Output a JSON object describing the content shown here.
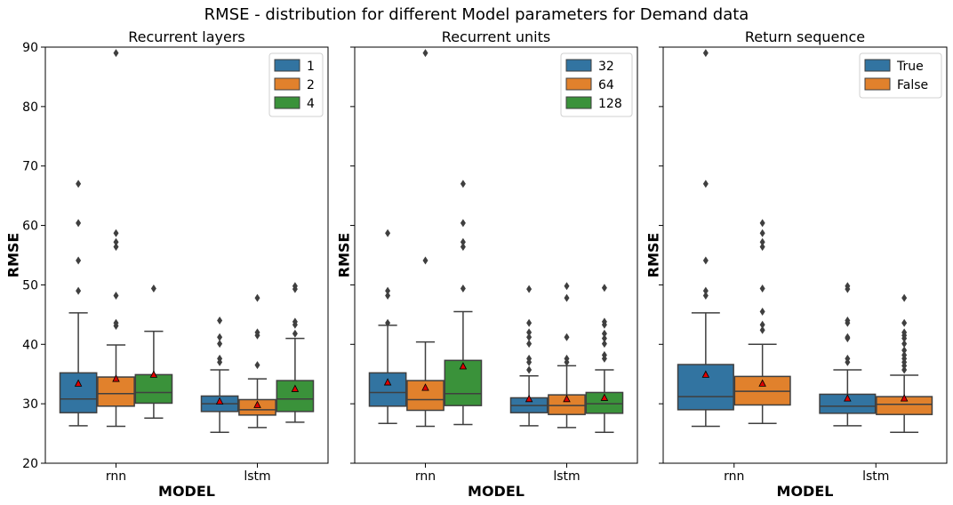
{
  "figure_title": "RMSE - distribution for different Model parameters for Demand data",
  "colors": {
    "blue": "#3274a1",
    "orange": "#e1812c",
    "green": "#3a923a",
    "mean_marker": "#e00000",
    "box_edge": "#3f3f3f"
  },
  "chart_data": [
    {
      "type": "box",
      "title": "Recurrent layers",
      "xlabel": "MODEL",
      "ylabel": "RMSE",
      "ylim": [
        20,
        90
      ],
      "yticks": [
        20,
        30,
        40,
        50,
        60,
        70,
        80,
        90
      ],
      "categories": [
        "rnn",
        "lstm"
      ],
      "legend_position": "top-right",
      "series": [
        {
          "name": "1",
          "color": "#3274a1",
          "boxes": [
            {
              "whisker_low": 26.3,
              "q1": 28.5,
              "median": 30.8,
              "q3": 35.2,
              "whisker_high": 45.3,
              "mean": 33.4,
              "outliers": [
                49.0,
                54.1,
                60.4,
                67.0
              ]
            },
            {
              "whisker_low": 25.2,
              "q1": 28.7,
              "median": 30.0,
              "q3": 31.3,
              "whisker_high": 35.7,
              "mean": 30.4,
              "outliers": [
                37.0,
                37.6,
                40.1,
                41.2,
                44.0
              ]
            }
          ]
        },
        {
          "name": "2",
          "color": "#e1812c",
          "boxes": [
            {
              "whisker_low": 26.2,
              "q1": 29.6,
              "median": 31.7,
              "q3": 34.5,
              "whisker_high": 39.9,
              "mean": 34.2,
              "outliers": [
                43.1,
                43.6,
                48.2,
                56.4,
                57.2,
                58.7,
                89.0
              ]
            },
            {
              "whisker_low": 26.0,
              "q1": 28.1,
              "median": 29.0,
              "q3": 30.7,
              "whisker_high": 34.2,
              "mean": 29.8,
              "outliers": [
                36.5,
                41.5,
                42.0,
                47.8
              ]
            }
          ]
        },
        {
          "name": "4",
          "color": "#3a923a",
          "boxes": [
            {
              "whisker_low": 27.6,
              "q1": 30.1,
              "median": 31.9,
              "q3": 34.9,
              "whisker_high": 42.2,
              "mean": 34.9,
              "outliers": [
                49.4
              ]
            },
            {
              "whisker_low": 26.9,
              "q1": 28.7,
              "median": 30.8,
              "q3": 33.9,
              "whisker_high": 41.0,
              "mean": 32.5,
              "outliers": [
                41.8,
                43.3,
                43.8,
                49.3,
                49.8
              ]
            }
          ]
        }
      ]
    },
    {
      "type": "box",
      "title": "Recurrent units",
      "xlabel": "MODEL",
      "ylabel": "RMSE",
      "ylim": [
        20,
        90
      ],
      "yticks": [
        20,
        30,
        40,
        50,
        60,
        70,
        80,
        90
      ],
      "categories": [
        "rnn",
        "lstm"
      ],
      "legend_position": "top-right",
      "series": [
        {
          "name": "32",
          "color": "#3274a1",
          "boxes": [
            {
              "whisker_low": 26.7,
              "q1": 29.6,
              "median": 31.9,
              "q3": 35.2,
              "whisker_high": 43.2,
              "mean": 33.6,
              "outliers": [
                43.6,
                48.2,
                49.0,
                58.7
              ]
            },
            {
              "whisker_low": 26.3,
              "q1": 28.5,
              "median": 29.7,
              "q3": 31.0,
              "whisker_high": 34.7,
              "mean": 30.8,
              "outliers": [
                35.7,
                37.0,
                37.6,
                40.1,
                41.2,
                42.0,
                43.6,
                49.3
              ]
            }
          ]
        },
        {
          "name": "64",
          "color": "#e1812c",
          "boxes": [
            {
              "whisker_low": 26.2,
              "q1": 28.9,
              "median": 30.7,
              "q3": 33.9,
              "whisker_high": 40.4,
              "mean": 32.7,
              "outliers": [
                54.1,
                89.0
              ]
            },
            {
              "whisker_low": 26.0,
              "q1": 28.2,
              "median": 29.7,
              "q3": 31.5,
              "whisker_high": 36.4,
              "mean": 30.8,
              "outliers": [
                37.0,
                37.6,
                41.2,
                47.8,
                49.8
              ]
            }
          ]
        },
        {
          "name": "128",
          "color": "#3a923a",
          "boxes": [
            {
              "whisker_low": 26.5,
              "q1": 29.7,
              "median": 31.7,
              "q3": 37.3,
              "whisker_high": 45.5,
              "mean": 36.3,
              "outliers": [
                49.4,
                56.4,
                57.2,
                60.4,
                67.0
              ]
            },
            {
              "whisker_low": 25.2,
              "q1": 28.4,
              "median": 30.0,
              "q3": 31.9,
              "whisker_high": 35.7,
              "mean": 31.0,
              "outliers": [
                37.6,
                38.2,
                40.1,
                41.0,
                41.8,
                43.3,
                43.8,
                49.5
              ]
            }
          ]
        }
      ]
    },
    {
      "type": "box",
      "title": "Return sequence",
      "xlabel": "MODEL",
      "ylabel": "RMSE",
      "ylim": [
        20,
        90
      ],
      "yticks": [
        20,
        30,
        40,
        50,
        60,
        70,
        80,
        90
      ],
      "categories": [
        "rnn",
        "lstm"
      ],
      "legend_position": "top-right",
      "series": [
        {
          "name": "True",
          "color": "#3274a1",
          "boxes": [
            {
              "whisker_low": 26.2,
              "q1": 29.0,
              "median": 31.2,
              "q3": 36.6,
              "whisker_high": 45.3,
              "mean": 34.9,
              "outliers": [
                48.2,
                49.0,
                54.1,
                67.0,
                89.0
              ]
            },
            {
              "whisker_low": 26.3,
              "q1": 28.4,
              "median": 29.6,
              "q3": 31.6,
              "whisker_high": 35.7,
              "mean": 30.9,
              "outliers": [
                37.0,
                37.6,
                41.0,
                41.2,
                43.6,
                44.0,
                49.3,
                49.8
              ]
            }
          ]
        },
        {
          "name": "False",
          "color": "#e1812c",
          "boxes": [
            {
              "whisker_low": 26.7,
              "q1": 29.8,
              "median": 32.1,
              "q3": 34.6,
              "whisker_high": 40.0,
              "mean": 33.4,
              "outliers": [
                42.4,
                43.3,
                45.5,
                49.4,
                56.4,
                57.2,
                58.7,
                60.4
              ]
            },
            {
              "whisker_low": 25.2,
              "q1": 28.2,
              "median": 29.9,
              "q3": 31.2,
              "whisker_high": 34.8,
              "mean": 30.9,
              "outliers": [
                35.7,
                36.4,
                37.0,
                37.6,
                38.2,
                39.0,
                40.1,
                41.0,
                41.5,
                42.0,
                43.6,
                47.8
              ]
            }
          ]
        }
      ]
    }
  ]
}
